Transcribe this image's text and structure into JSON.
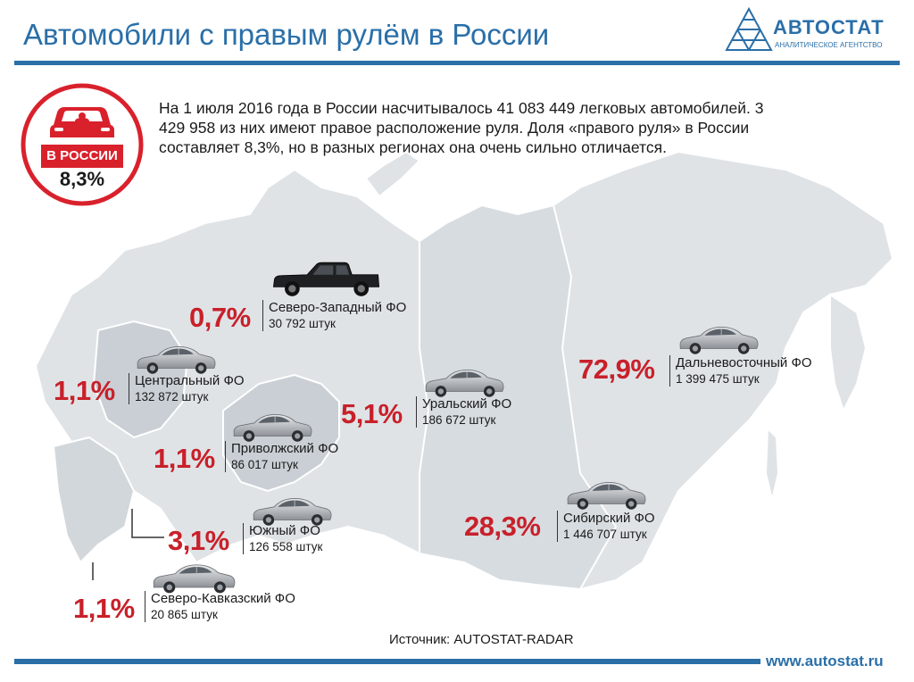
{
  "header": {
    "title": "Автомобили с правым рулём в России",
    "logo_name": "АВТОСТАТ",
    "logo_sub": "АНАЛИТИЧЕСКОЕ АГЕНТСТВО",
    "logo_icon": "autostat-logo-icon"
  },
  "badge": {
    "label": "В РОССИИ",
    "value": "8,3%",
    "icon": "car-front-icon",
    "color": "#d9212c"
  },
  "intro": {
    "text": "На 1 июля 2016 года в России насчитывалось 41 083 449  легковых автомобилей. 3 429 958 из них имеют правое расположение руля. Доля «правого руля» в России составляет 8,3%, но в разных регионах она очень сильно отличается."
  },
  "regions": [
    {
      "id": "nw",
      "percent": "0,7%",
      "name": "Северо-Западный ФО",
      "count": "30 792 штук",
      "icon": "pickup-truck-icon"
    },
    {
      "id": "central",
      "percent": "1,1%",
      "name": "Центральный ФО",
      "count": "132 872 штук",
      "icon": "sedan-car-icon"
    },
    {
      "id": "volga",
      "percent": "1,1%",
      "name": "Приволжский ФО",
      "count": "86 017 штук",
      "icon": "sedan-car-icon"
    },
    {
      "id": "south",
      "percent": "3,1%",
      "name": "Южный ФО",
      "count": "126 558 штук",
      "icon": "sedan-car-icon"
    },
    {
      "id": "ncaucasus",
      "percent": "1,1%",
      "name": "Северо-Кавказский ФО",
      "count": "20 865 штук",
      "icon": "sedan-car-icon"
    },
    {
      "id": "ural",
      "percent": "5,1%",
      "name": "Уральский ФО",
      "count": "186 672 штук",
      "icon": "sedan-car-icon"
    },
    {
      "id": "siberia",
      "percent": "28,3%",
      "name": "Сибирский ФО",
      "count": "1 446 707 штук",
      "icon": "sedan-car-icon"
    },
    {
      "id": "fareast",
      "percent": "72,9%",
      "name": "Дальневосточный ФО",
      "count": "1 399 475 штук",
      "icon": "sedan-car-icon"
    }
  ],
  "colors": {
    "accent_blue": "#2a6fa8",
    "percent_red": "#c8202a",
    "map_fill": "#dfe3e6",
    "map_highlight": "#c9cfd4"
  },
  "footer": {
    "source": "Источник: AUTOSTAT-RADAR",
    "site": "www.autostat.ru"
  }
}
